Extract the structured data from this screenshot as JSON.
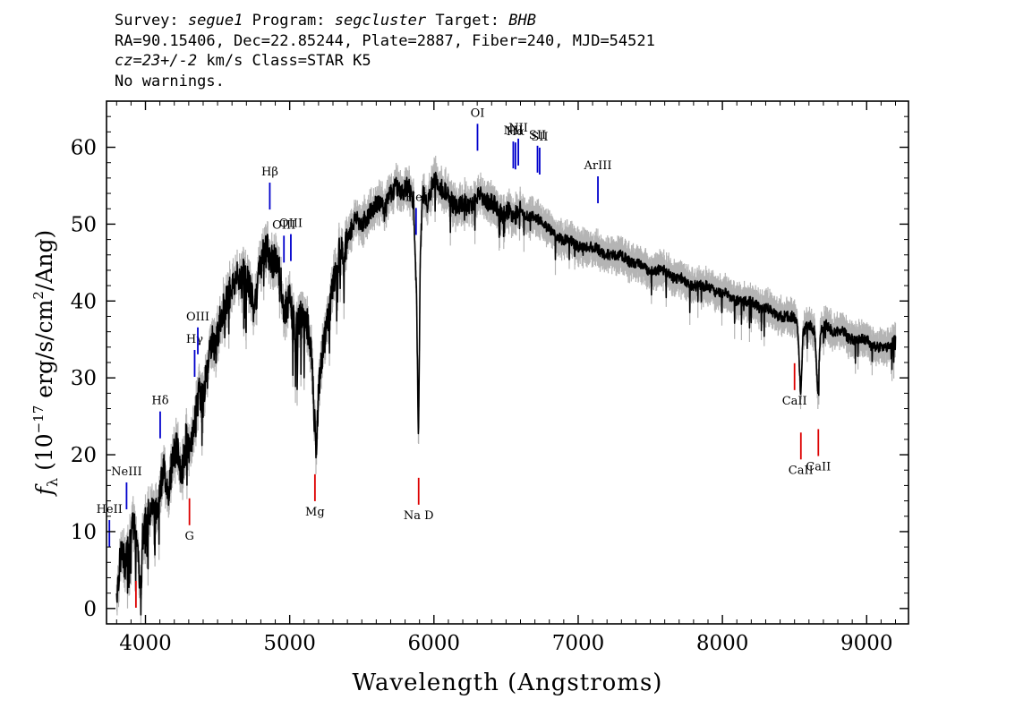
{
  "header": {
    "line1": {
      "survey_label": "Survey:",
      "survey": "segue1",
      "program_label": "Program:",
      "program": "segcluster",
      "target_label": "Target:",
      "target": "BHB"
    },
    "line2": "RA=90.15406, Dec=22.85244, Plate=2887, Fiber=240, MJD=54521",
    "line3": {
      "cz": "cz=23+/-2",
      "rest": "km/s Class=STAR K5"
    },
    "line4": "No warnings."
  },
  "colors": {
    "flux": "#000000",
    "error": "#b4b4b4",
    "emission": "#0000cc",
    "absorption": "#dd0000"
  },
  "chart_data": {
    "type": "line",
    "title": "",
    "xlabel": "Wavelength (Angstroms)",
    "ylabel_parts": {
      "f": "f",
      "sub": "λ",
      "unit_a": "(10",
      "exp": "−17",
      "unit_b": " erg/s/cm",
      "exp2": "2",
      "unit_c": "/Ang)"
    },
    "xlim": [
      3730,
      9290
    ],
    "ylim": [
      -2,
      66
    ],
    "x_ticks": [
      4000,
      5000,
      6000,
      7000,
      8000,
      9000
    ],
    "y_ticks": [
      0,
      10,
      20,
      30,
      40,
      50,
      60
    ],
    "series": [
      {
        "x": [
          3800,
          3830,
          3860,
          3890,
          3920,
          3950,
          3968,
          3980,
          4010,
          4040,
          4070,
          4100,
          4130,
          4160,
          4190,
          4220,
          4250,
          4280,
          4310,
          4340,
          4370,
          4400,
          4430,
          4460,
          4490,
          4520,
          4560,
          4600,
          4640,
          4680,
          4720,
          4760,
          4800,
          4840,
          4880,
          4920,
          4960,
          5000,
          5040,
          5080,
          5120,
          5150,
          5170,
          5183,
          5200,
          5230,
          5270,
          5300,
          5340,
          5380,
          5420,
          5460,
          5500,
          5540,
          5580,
          5620,
          5660,
          5700,
          5740,
          5780,
          5820,
          5860,
          5880,
          5893,
          5905,
          5920,
          5960,
          6000,
          6040,
          6080,
          6120,
          6160,
          6200,
          6240,
          6280,
          6320,
          6360,
          6400,
          6440,
          6480,
          6520,
          6560,
          6600,
          6640,
          6700,
          6760,
          6820,
          6880,
          6940,
          7000,
          7060,
          7120,
          7180,
          7240,
          7300,
          7360,
          7420,
          7480,
          7540,
          7600,
          7660,
          7720,
          7780,
          7840,
          7900,
          7960,
          8020,
          8080,
          8140,
          8200,
          8260,
          8320,
          8380,
          8440,
          8498,
          8520,
          8542,
          8560,
          8600,
          8640,
          8662,
          8680,
          8720,
          8760,
          8800,
          8840,
          8880,
          8920,
          8960,
          9000,
          9040,
          9080,
          9120,
          9160,
          9200
        ],
        "y": [
          2,
          7,
          6,
          9,
          11,
          8,
          1,
          9,
          12,
          14,
          12,
          16,
          18,
          15,
          20,
          21,
          17,
          22,
          20,
          24,
          28,
          27,
          32,
          35,
          34,
          38,
          40,
          42,
          43,
          44,
          42,
          40,
          45,
          47,
          45,
          46,
          39,
          40,
          36,
          38,
          37,
          34,
          25,
          21,
          28,
          34,
          38,
          42,
          46,
          47,
          49,
          51,
          50,
          51,
          52,
          53,
          52,
          54,
          55,
          54,
          55,
          53,
          40,
          21,
          45,
          54,
          53,
          56,
          55,
          54,
          53,
          52,
          53,
          52,
          53,
          54,
          53,
          53,
          52,
          51,
          52,
          51,
          52,
          51,
          51,
          50,
          49,
          48,
          48,
          47,
          47,
          47,
          46,
          46,
          46,
          45,
          45,
          44,
          44,
          44,
          43,
          43,
          42,
          42,
          42,
          41,
          41,
          40,
          40,
          40,
          39,
          39,
          38,
          38,
          38,
          37,
          28,
          36,
          37,
          36,
          28,
          36,
          37,
          36,
          36,
          36,
          35,
          35,
          35,
          35,
          34,
          34,
          34,
          34,
          35
        ]
      }
    ],
    "emission_lines": [
      {
        "label": "HeII",
        "wave": 3750
      },
      {
        "label": "NeIII",
        "wave": 3869
      },
      {
        "label": "Hδ",
        "wave": 4102
      },
      {
        "label": "Hγ",
        "wave": 4341
      },
      {
        "label": "OIII",
        "wave": 4363
      },
      {
        "label": "Hβ",
        "wave": 4862
      },
      {
        "label": "OIII",
        "wave": 4960
      },
      {
        "label": "OIII",
        "wave": 5008
      },
      {
        "label": "HeI",
        "wave": 5876
      },
      {
        "label": "OI",
        "wave": 6302
      },
      {
        "label": "NII",
        "wave": 6550
      },
      {
        "label": "Hα",
        "wave": 6565
      },
      {
        "label": "NII",
        "wave": 6585
      },
      {
        "label": "SII",
        "wave": 6718
      },
      {
        "label": "SII",
        "wave": 6733
      },
      {
        "label": "ArIII",
        "wave": 7137
      }
    ],
    "absorption_lines": [
      {
        "label": "",
        "wave": 3934
      },
      {
        "label": "G",
        "wave": 4305
      },
      {
        "label": "Mg",
        "wave": 5175
      },
      {
        "label": "Na D",
        "wave": 5894
      },
      {
        "label": "CaII",
        "wave": 8500
      },
      {
        "label": "CaII",
        "wave": 8544
      },
      {
        "label": "CaII",
        "wave": 8665
      }
    ]
  }
}
